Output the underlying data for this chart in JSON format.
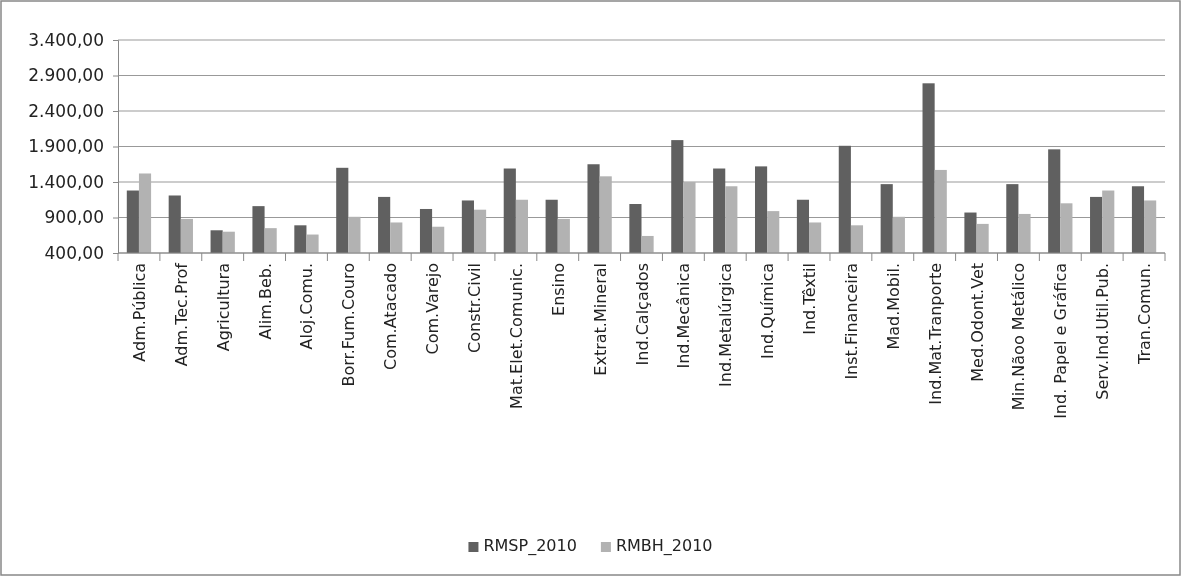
{
  "chart_data": {
    "type": "bar",
    "categories": [
      "Adm.Pública",
      "Adm.Tec.Prof",
      "Agricultura",
      "Alim.Beb.",
      "Aloj.Comu.",
      "Borr.Fum.Couro",
      "Com.Atacado",
      "Com.Varejo",
      "Constr.Civil",
      "Mat.Elet.Comunic.",
      "Ensino",
      "Extrat.Mineral",
      "Ind.Calçados",
      "Ind.Mecânica",
      "Ind.Metalúrgica",
      "Ind.Química",
      "Ind.Têxtil",
      "Inst.Financeira",
      "Mad.Mobil.",
      "Ind.Mat.Tranporte",
      "Med.Odont.Vet",
      "Min.Nãoo Metálico",
      "Ind. Papel e Gráfica",
      "Serv.Ind.Util.Pub.",
      "Tran.Comun."
    ],
    "series": [
      {
        "name": "RMSP_2010",
        "color": "#606060",
        "values": [
          1280,
          1210,
          720,
          1060,
          790,
          1600,
          1190,
          1020,
          1140,
          1590,
          1150,
          1650,
          1090,
          1990,
          1590,
          1620,
          1150,
          1910,
          1370,
          2790,
          970,
          1370,
          1860,
          1190,
          1340
        ]
      },
      {
        "name": "RMBH_2010",
        "color": "#b2b2b2",
        "values": [
          1520,
          880,
          700,
          750,
          660,
          910,
          830,
          770,
          1010,
          1150,
          880,
          1480,
          640,
          1400,
          1340,
          990,
          830,
          790,
          910,
          1570,
          810,
          950,
          1100,
          1280,
          1140
        ]
      }
    ],
    "ylim": [
      400,
      3400
    ],
    "yticks": [
      {
        "value": 400,
        "label": "400,00"
      },
      {
        "value": 900,
        "label": "900,00"
      },
      {
        "value": 1400,
        "label": "1.400,00"
      },
      {
        "value": 1900,
        "label": "1.900,00"
      },
      {
        "value": 2400,
        "label": "2.400,00"
      },
      {
        "value": 2900,
        "label": "2.900,00"
      },
      {
        "value": 3400,
        "label": "3.400,00"
      }
    ],
    "grid": "y",
    "legend": "bottom"
  }
}
